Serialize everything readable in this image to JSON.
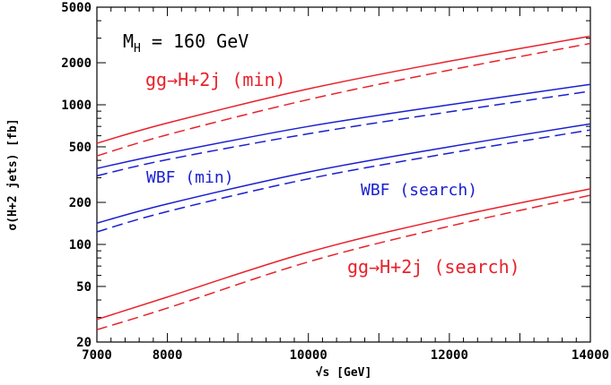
{
  "chart_data": {
    "type": "line",
    "title": "",
    "xlabel": "√s [GeV]",
    "ylabel": "σ(H+2 jets) [fb]",
    "xscale": "linear",
    "yscale": "log",
    "xlim": [
      7000,
      14000
    ],
    "ylim": [
      20,
      5000
    ],
    "xticks": [
      7000,
      8000,
      10000,
      12000,
      14000
    ],
    "yticks": [
      20,
      50,
      100,
      200,
      500,
      1000,
      2000,
      5000
    ],
    "colors": {
      "red": "#e8212a",
      "blue": "#1a1fd0"
    },
    "annotations": [
      {
        "id": "mass",
        "text_main": "M",
        "text_sub": "H",
        "text_rest": " = 160 GeV",
        "color": "#000000"
      },
      {
        "id": "gg_min",
        "text": "gg→H+2j (min)",
        "color": "#e8212a"
      },
      {
        "id": "wbf_min",
        "text": "WBF (min)",
        "color": "#1a1fd0"
      },
      {
        "id": "wbf_search",
        "text": "WBF (search)",
        "color": "#1a1fd0"
      },
      {
        "id": "gg_search",
        "text": "gg→H+2j (search)",
        "color": "#e8212a"
      }
    ],
    "series": [
      {
        "id": "gg_min_solid",
        "color": "#e8212a",
        "dash": false,
        "x": [
          7000,
          8000,
          10000,
          12000,
          14000
        ],
        "y": [
          530,
          740,
          1300,
          2050,
          3100
        ]
      },
      {
        "id": "gg_min_dashed",
        "color": "#e8212a",
        "dash": true,
        "x": [
          7000,
          8000,
          10000,
          12000,
          14000
        ],
        "y": [
          430,
          610,
          1090,
          1770,
          2750
        ]
      },
      {
        "id": "wbf_min_solid",
        "color": "#1a1fd0",
        "dash": false,
        "x": [
          7000,
          8000,
          10000,
          12000,
          14000
        ],
        "y": [
          350,
          450,
          700,
          1000,
          1400
        ]
      },
      {
        "id": "wbf_min_dashed",
        "color": "#1a1fd0",
        "dash": true,
        "x": [
          7000,
          8000,
          10000,
          12000,
          14000
        ],
        "y": [
          310,
          405,
          620,
          890,
          1250
        ]
      },
      {
        "id": "wbf_search_solid",
        "color": "#1a1fd0",
        "dash": false,
        "x": [
          7000,
          8000,
          10000,
          12000,
          14000
        ],
        "y": [
          142,
          195,
          330,
          500,
          730
        ]
      },
      {
        "id": "wbf_search_dashed",
        "color": "#1a1fd0",
        "dash": true,
        "x": [
          7000,
          8000,
          10000,
          12000,
          14000
        ],
        "y": [
          123,
          172,
          295,
          450,
          660
        ]
      },
      {
        "id": "gg_search_solid",
        "color": "#e8212a",
        "dash": false,
        "x": [
          7000,
          8000,
          10000,
          12000,
          14000
        ],
        "y": [
          29,
          42,
          88,
          155,
          250
        ]
      },
      {
        "id": "gg_search_dashed",
        "color": "#e8212a",
        "dash": true,
        "x": [
          7000,
          8000,
          10000,
          12000,
          14000
        ],
        "y": [
          24.5,
          35,
          75,
          135,
          225
        ]
      }
    ]
  }
}
